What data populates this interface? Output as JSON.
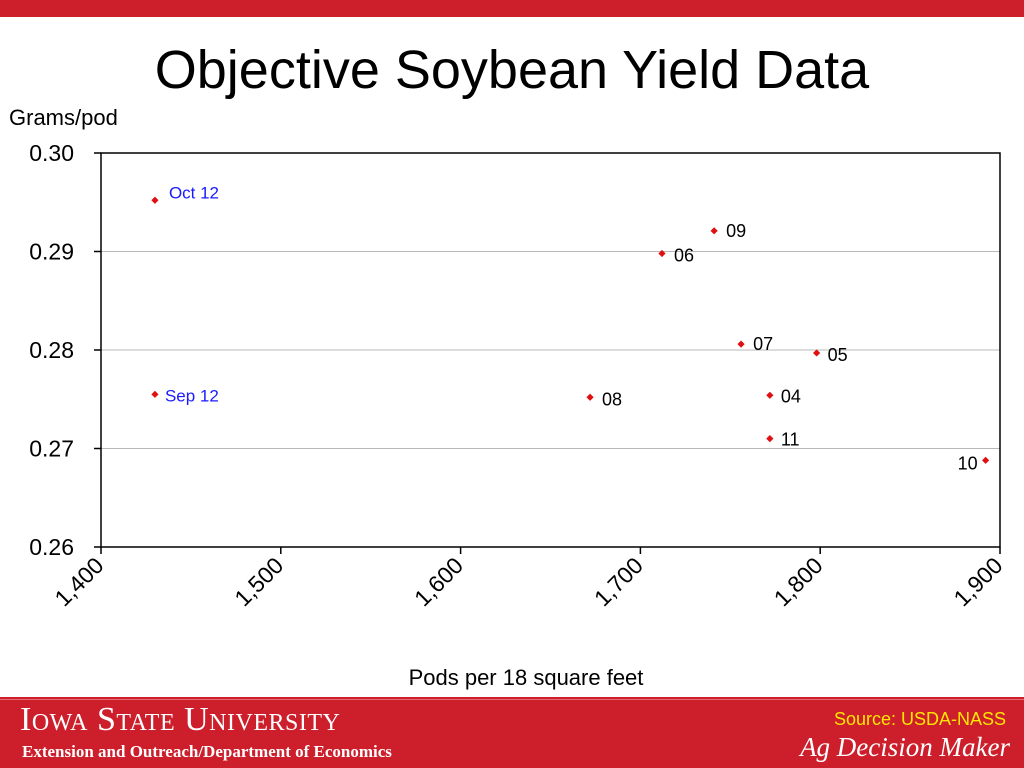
{
  "slide": {
    "title": "Objective Soybean Yield Data"
  },
  "footer": {
    "university": "Iowa State University",
    "department": "Extension and Outreach/Department of Economics",
    "source": "Source: USDA-NASS",
    "brand": "Ag Decision Maker"
  },
  "colors": {
    "accent_red": "#cc1f2b",
    "marker_red": "#e01010",
    "label_blue": "#1a1aff",
    "source_yellow": "#ffe600"
  },
  "chart_data": {
    "type": "scatter",
    "title": "",
    "xlabel": "Pods per 18 square feet",
    "ylabel": "Grams/pod",
    "xlim": [
      1400,
      1900
    ],
    "ylim": [
      0.26,
      0.3
    ],
    "xticks": [
      "1,400",
      "1,500",
      "1,600",
      "1,700",
      "1,800",
      "1,900"
    ],
    "yticks": [
      "0.26",
      "0.27",
      "0.28",
      "0.29",
      "0.30"
    ],
    "grid": "horizontal",
    "points": [
      {
        "label": "Oct 12",
        "x": 1430,
        "y": 0.2952,
        "highlight": true
      },
      {
        "label": "Sep 12",
        "x": 1430,
        "y": 0.2755,
        "highlight": true
      },
      {
        "label": "09",
        "x": 1741,
        "y": 0.2921
      },
      {
        "label": "06",
        "x": 1712,
        "y": 0.2898
      },
      {
        "label": "07",
        "x": 1756,
        "y": 0.2806
      },
      {
        "label": "05",
        "x": 1798,
        "y": 0.2797
      },
      {
        "label": "08",
        "x": 1672,
        "y": 0.2752
      },
      {
        "label": "04",
        "x": 1772,
        "y": 0.2754
      },
      {
        "label": "11",
        "x": 1772,
        "y": 0.271
      },
      {
        "label": "10",
        "x": 1892,
        "y": 0.2688
      }
    ]
  }
}
